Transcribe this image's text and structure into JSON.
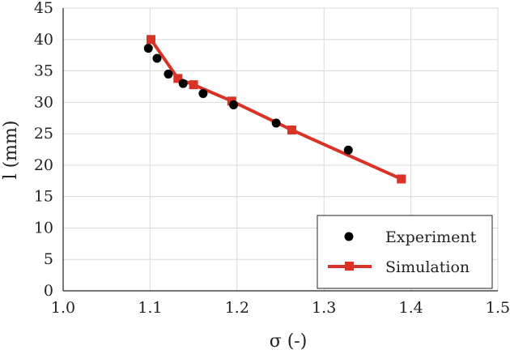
{
  "chart_data": {
    "type": "scatter",
    "xlabel": "σ (-)",
    "ylabel": "l (mm)",
    "xlim": [
      1.0,
      1.5
    ],
    "ylim": [
      0,
      45
    ],
    "x_ticks": [
      "1.0",
      "1.1",
      "1.2",
      "1.3",
      "1.4",
      "1.5"
    ],
    "y_ticks": [
      "0",
      "5",
      "10",
      "15",
      "20",
      "25",
      "30",
      "35",
      "40",
      "45"
    ],
    "grid": true,
    "legend_position": "bottom-right",
    "series": [
      {
        "name": "Experiment",
        "kind": "scatter",
        "marker": "circle",
        "color": "#000000",
        "x": [
          1.098,
          1.108,
          1.121,
          1.138,
          1.161,
          1.196,
          1.245,
          1.328
        ],
        "y": [
          38.6,
          37.0,
          34.5,
          33.0,
          31.4,
          29.6,
          26.7,
          22.4
        ]
      },
      {
        "name": "Simulation",
        "kind": "line",
        "marker": "square",
        "color": "#d93328",
        "x": [
          1.101,
          1.132,
          1.15,
          1.194,
          1.263,
          1.389
        ],
        "y": [
          40.0,
          33.8,
          32.8,
          30.2,
          25.6,
          17.8
        ]
      }
    ]
  }
}
